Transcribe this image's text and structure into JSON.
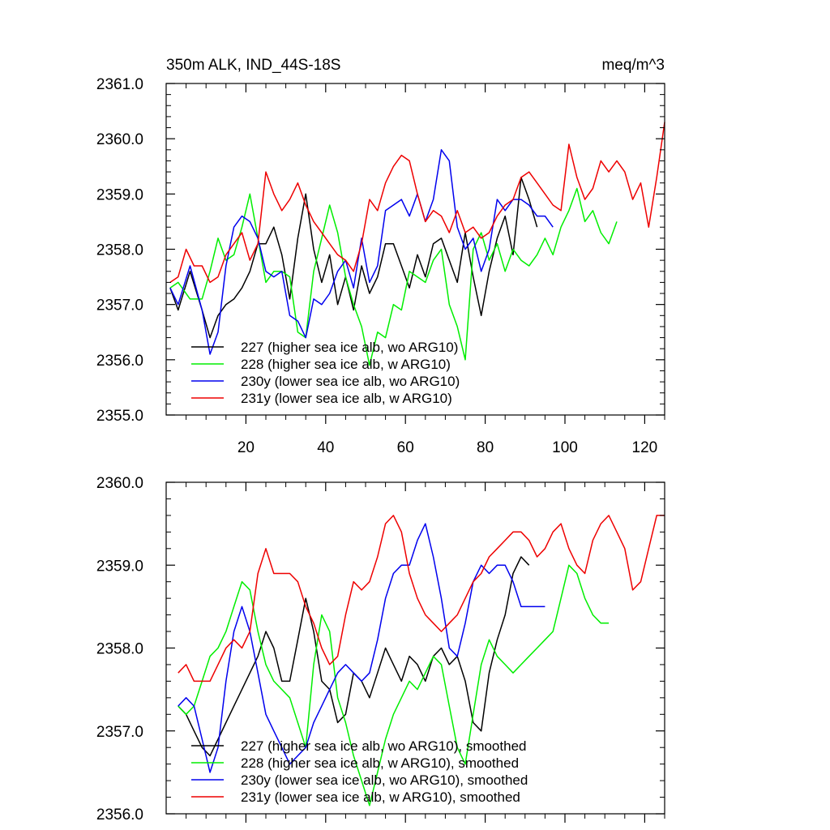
{
  "chart_data": [
    {
      "type": "line",
      "title": "350m ALK, IND_44S-18S",
      "units": "meq/m^3",
      "xlim": [
        0,
        125
      ],
      "ylim": [
        2355.0,
        2361.0
      ],
      "yticks": [
        "2355.0",
        "2356.0",
        "2357.0",
        "2358.0",
        "2359.0",
        "2360.0",
        "2361.0"
      ],
      "xticks": [
        "20",
        "40",
        "60",
        "80",
        "100",
        "120"
      ],
      "series": [
        {
          "name": "227 (higher sea ice alb, wo ARG10)",
          "color": "#000000",
          "x": [
            1,
            3,
            6,
            9,
            11,
            13,
            15,
            17,
            19,
            21,
            23,
            25,
            27,
            29,
            31,
            33,
            35,
            37,
            39,
            41,
            43,
            45,
            47,
            49,
            51,
            53,
            55,
            57,
            59,
            61,
            63,
            65,
            67,
            69,
            71,
            73,
            75,
            77,
            79,
            81,
            83,
            85,
            87,
            89,
            91,
            93
          ],
          "y": [
            2357.3,
            2356.9,
            2357.6,
            2356.9,
            2356.4,
            2356.8,
            2357.0,
            2357.1,
            2357.3,
            2357.6,
            2358.1,
            2358.1,
            2358.4,
            2357.9,
            2357.1,
            2358.2,
            2359.0,
            2358.0,
            2357.4,
            2357.9,
            2357.0,
            2357.5,
            2356.9,
            2357.7,
            2357.2,
            2357.5,
            2358.1,
            2358.1,
            2357.7,
            2357.3,
            2357.9,
            2357.5,
            2358.1,
            2358.2,
            2357.8,
            2357.4,
            2358.3,
            2357.5,
            2356.8,
            2357.6,
            2358.2,
            2358.6,
            2357.9,
            2359.3,
            2358.9,
            2358.4
          ]
        },
        {
          "name": "228 (higher sea ice alb, w ARG10)",
          "color": "#00ee00",
          "x": [
            1,
            3,
            6,
            9,
            11,
            13,
            15,
            17,
            19,
            21,
            23,
            25,
            27,
            29,
            31,
            33,
            35,
            37,
            39,
            41,
            43,
            45,
            47,
            49,
            51,
            53,
            55,
            57,
            59,
            61,
            63,
            65,
            67,
            69,
            71,
            73,
            75,
            77,
            79,
            81,
            83,
            85,
            87,
            89,
            91,
            93,
            95,
            97,
            99,
            101,
            103,
            105,
            107,
            109,
            111,
            113
          ],
          "y": [
            2357.3,
            2357.4,
            2357.1,
            2357.1,
            2357.6,
            2358.2,
            2357.8,
            2357.9,
            2358.4,
            2359.0,
            2358.2,
            2357.4,
            2357.6,
            2357.6,
            2357.5,
            2356.5,
            2356.4,
            2357.6,
            2358.2,
            2358.8,
            2358.3,
            2357.5,
            2357.0,
            2356.6,
            2355.9,
            2356.5,
            2356.4,
            2357.0,
            2356.9,
            2357.6,
            2357.5,
            2357.4,
            2357.8,
            2358.0,
            2357.0,
            2356.6,
            2356.0,
            2358.0,
            2358.3,
            2357.8,
            2358.1,
            2357.6,
            2358.0,
            2357.8,
            2357.7,
            2357.9,
            2358.2,
            2357.9,
            2358.4,
            2358.7,
            2359.1,
            2358.5,
            2358.7,
            2358.3,
            2358.1,
            2358.5
          ]
        },
        {
          "name": "230y (lower sea ice alb, wo ARG10)",
          "color": "#0000ee",
          "x": [
            1,
            3,
            6,
            9,
            11,
            13,
            15,
            17,
            19,
            21,
            23,
            25,
            27,
            29,
            31,
            33,
            35,
            37,
            39,
            41,
            43,
            45,
            47,
            49,
            51,
            53,
            55,
            57,
            59,
            61,
            63,
            65,
            67,
            69,
            71,
            73,
            75,
            77,
            79,
            81,
            83,
            85,
            87,
            89,
            91,
            93,
            95,
            97
          ],
          "y": [
            2357.3,
            2357.0,
            2357.7,
            2356.9,
            2356.1,
            2356.5,
            2357.7,
            2358.4,
            2358.6,
            2358.5,
            2358.2,
            2357.6,
            2357.5,
            2357.6,
            2356.8,
            2356.7,
            2356.4,
            2357.1,
            2357.0,
            2357.2,
            2357.6,
            2357.8,
            2357.3,
            2358.2,
            2357.4,
            2357.7,
            2358.7,
            2358.8,
            2358.9,
            2358.6,
            2359.0,
            2358.5,
            2358.9,
            2359.8,
            2359.6,
            2358.4,
            2358.0,
            2358.2,
            2357.6,
            2358.0,
            2358.9,
            2358.7,
            2358.9,
            2358.9,
            2358.8,
            2358.6,
            2358.6,
            2358.4
          ]
        },
        {
          "name": "231y (lower sea ice alb, w ARG10)",
          "color": "#ee0000",
          "x": [
            1,
            3,
            5,
            7,
            9,
            11,
            13,
            15,
            17,
            19,
            21,
            23,
            25,
            27,
            29,
            31,
            33,
            35,
            37,
            39,
            41,
            43,
            45,
            47,
            49,
            51,
            53,
            55,
            57,
            59,
            61,
            63,
            65,
            67,
            69,
            71,
            73,
            75,
            77,
            79,
            81,
            83,
            85,
            87,
            89,
            91,
            93,
            95,
            97,
            99,
            101,
            103,
            105,
            107,
            109,
            111,
            113,
            115,
            117,
            119,
            121,
            123,
            125
          ],
          "y": [
            2357.4,
            2357.5,
            2358.0,
            2357.7,
            2357.7,
            2357.4,
            2357.5,
            2357.9,
            2358.1,
            2358.3,
            2357.8,
            2358.1,
            2359.4,
            2359.0,
            2358.7,
            2358.9,
            2359.2,
            2358.8,
            2358.5,
            2358.3,
            2358.1,
            2357.9,
            2357.8,
            2357.6,
            2358.1,
            2358.9,
            2358.7,
            2359.2,
            2359.5,
            2359.7,
            2359.6,
            2359.0,
            2358.5,
            2358.7,
            2358.6,
            2358.3,
            2358.7,
            2358.3,
            2358.4,
            2358.2,
            2358.3,
            2358.6,
            2358.8,
            2358.9,
            2359.3,
            2359.4,
            2359.2,
            2359.0,
            2358.8,
            2358.7,
            2359.9,
            2359.3,
            2358.9,
            2359.1,
            2359.6,
            2359.4,
            2359.6,
            2359.4,
            2358.9,
            2359.2,
            2358.4,
            2359.3,
            2360.3
          ]
        }
      ]
    },
    {
      "type": "line",
      "title": "",
      "xlim": [
        0,
        125
      ],
      "ylim": [
        2356.0,
        2360.0
      ],
      "yticks": [
        "2356.0",
        "2357.0",
        "2358.0",
        "2359.0",
        "2360.0"
      ],
      "xticks": [],
      "series": [
        {
          "name": "227 (higher sea ice alb, wo ARG10), smoothed",
          "color": "#000000",
          "x": [
            3,
            5,
            7,
            9,
            11,
            13,
            15,
            17,
            19,
            21,
            23,
            25,
            27,
            29,
            31,
            33,
            35,
            37,
            39,
            41,
            43,
            45,
            47,
            49,
            51,
            53,
            55,
            57,
            59,
            61,
            63,
            65,
            67,
            69,
            71,
            73,
            75,
            77,
            79,
            81,
            83,
            85,
            87,
            89,
            91
          ],
          "y": [
            2357.3,
            2357.2,
            2357.0,
            2356.8,
            2356.7,
            2356.9,
            2357.1,
            2357.3,
            2357.5,
            2357.7,
            2357.9,
            2358.2,
            2358.0,
            2357.6,
            2357.6,
            2358.1,
            2358.6,
            2358.2,
            2357.6,
            2357.5,
            2357.1,
            2357.2,
            2357.7,
            2357.6,
            2357.4,
            2357.7,
            2358.0,
            2357.8,
            2357.6,
            2357.9,
            2357.8,
            2357.6,
            2357.9,
            2358.0,
            2357.8,
            2357.9,
            2357.6,
            2357.1,
            2357.0,
            2357.7,
            2358.1,
            2358.4,
            2358.9,
            2359.1,
            2359.0
          ]
        },
        {
          "name": "228 (higher sea ice alb, w ARG10), smoothed",
          "color": "#00ee00",
          "x": [
            3,
            5,
            7,
            9,
            11,
            13,
            15,
            17,
            19,
            21,
            23,
            25,
            27,
            29,
            31,
            33,
            35,
            37,
            39,
            41,
            43,
            45,
            47,
            49,
            51,
            53,
            55,
            57,
            59,
            61,
            63,
            65,
            67,
            69,
            71,
            73,
            75,
            77,
            79,
            81,
            83,
            85,
            87,
            89,
            91,
            93,
            95,
            97,
            99,
            101,
            103,
            105,
            107,
            109,
            111
          ],
          "y": [
            2357.3,
            2357.2,
            2357.3,
            2357.6,
            2357.9,
            2358.0,
            2358.2,
            2358.5,
            2358.8,
            2358.7,
            2358.2,
            2357.8,
            2357.6,
            2357.5,
            2357.4,
            2357.1,
            2356.8,
            2357.8,
            2358.4,
            2358.2,
            2357.4,
            2357.1,
            2356.7,
            2356.4,
            2356.1,
            2356.5,
            2356.9,
            2357.2,
            2357.4,
            2357.6,
            2357.5,
            2357.7,
            2357.9,
            2357.8,
            2357.3,
            2356.8,
            2356.6,
            2357.2,
            2357.8,
            2358.1,
            2357.9,
            2357.8,
            2357.7,
            2357.8,
            2357.9,
            2358.0,
            2358.1,
            2358.2,
            2358.6,
            2359.0,
            2358.9,
            2358.6,
            2358.4,
            2358.3,
            2358.3
          ]
        },
        {
          "name": "230y (lower sea ice alb, wo ARG10), smoothed",
          "color": "#0000ee",
          "x": [
            3,
            5,
            7,
            9,
            11,
            13,
            15,
            17,
            19,
            21,
            23,
            25,
            27,
            29,
            31,
            33,
            35,
            37,
            39,
            41,
            43,
            45,
            47,
            49,
            51,
            53,
            55,
            57,
            59,
            61,
            63,
            65,
            67,
            69,
            71,
            73,
            75,
            77,
            79,
            81,
            83,
            85,
            87,
            89,
            91,
            93,
            95
          ],
          "y": [
            2357.3,
            2357.4,
            2357.3,
            2356.9,
            2356.5,
            2356.8,
            2357.6,
            2358.2,
            2358.5,
            2358.2,
            2357.7,
            2357.2,
            2357.0,
            2356.8,
            2356.6,
            2356.7,
            2356.8,
            2357.1,
            2357.3,
            2357.5,
            2357.7,
            2357.8,
            2357.7,
            2357.6,
            2357.7,
            2358.1,
            2358.6,
            2358.9,
            2359.0,
            2359.0,
            2359.3,
            2359.5,
            2359.1,
            2358.6,
            2358.0,
            2357.9,
            2358.3,
            2358.8,
            2359.0,
            2358.9,
            2359.0,
            2359.0,
            2358.8,
            2358.5,
            2358.5,
            2358.5,
            2358.5
          ]
        },
        {
          "name": "231y (lower sea ice alb, w ARG10), smoothed",
          "color": "#ee0000",
          "x": [
            3,
            5,
            7,
            9,
            11,
            13,
            15,
            17,
            19,
            21,
            23,
            25,
            27,
            29,
            31,
            33,
            35,
            37,
            39,
            41,
            43,
            45,
            47,
            49,
            51,
            53,
            55,
            57,
            59,
            61,
            63,
            65,
            67,
            69,
            71,
            73,
            75,
            77,
            79,
            81,
            83,
            85,
            87,
            89,
            91,
            93,
            95,
            97,
            99,
            101,
            103,
            105,
            107,
            109,
            111,
            113,
            115,
            117,
            119,
            121,
            123,
            125
          ],
          "y": [
            2357.7,
            2357.8,
            2357.6,
            2357.6,
            2357.6,
            2357.8,
            2358.0,
            2358.1,
            2358.0,
            2358.2,
            2358.9,
            2359.2,
            2358.9,
            2358.9,
            2358.9,
            2358.8,
            2358.5,
            2358.3,
            2358.0,
            2357.8,
            2357.9,
            2358.4,
            2358.8,
            2358.7,
            2358.8,
            2359.1,
            2359.5,
            2359.6,
            2359.4,
            2358.9,
            2358.6,
            2358.4,
            2358.3,
            2358.2,
            2358.3,
            2358.4,
            2358.6,
            2358.8,
            2358.9,
            2359.1,
            2359.2,
            2359.3,
            2359.4,
            2359.4,
            2359.3,
            2359.1,
            2359.2,
            2359.4,
            2359.5,
            2359.2,
            2359.0,
            2358.9,
            2359.3,
            2359.5,
            2359.6,
            2359.4,
            2359.2,
            2358.7,
            2358.8,
            2359.2,
            2359.6,
            2359.6
          ]
        }
      ]
    }
  ]
}
